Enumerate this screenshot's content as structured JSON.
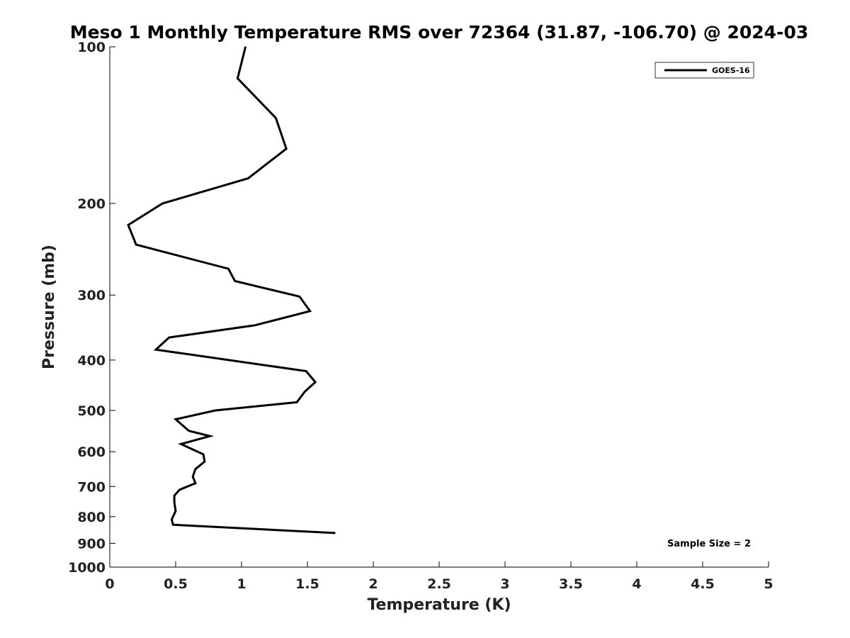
{
  "chart_data": {
    "type": "line",
    "title": "Meso 1 Monthly Temperature RMS over 72364 (31.87, -106.70) @ 2024-03",
    "xlabel": "Temperature (K)",
    "ylabel": "Pressure (mb)",
    "xlim": [
      0,
      5
    ],
    "ylim": [
      1000,
      100
    ],
    "y_scale": "log",
    "y_reversed": true,
    "grid": false,
    "x_ticks": [
      0,
      0.5,
      1,
      1.5,
      2,
      2.5,
      3,
      3.5,
      4,
      4.5,
      5
    ],
    "x_tick_labels": [
      "0",
      "0.5",
      "1",
      "1.5",
      "2",
      "2.5",
      "3",
      "3.5",
      "4",
      "4.5",
      "5"
    ],
    "y_ticks": [
      100,
      200,
      300,
      400,
      500,
      600,
      700,
      800,
      900,
      1000
    ],
    "y_tick_labels": [
      "100",
      "200",
      "300",
      "400",
      "500",
      "600",
      "700",
      "800",
      "900",
      "1000"
    ],
    "legend_position": "top-right",
    "series": [
      {
        "name": "GOES-16",
        "color": "#000000",
        "x": [
          1.03,
          0.97,
          1.26,
          1.34,
          1.05,
          0.4,
          0.14,
          0.2,
          0.9,
          0.95,
          1.44,
          1.52,
          1.1,
          0.45,
          0.35,
          1.49,
          1.56,
          1.48,
          1.42,
          0.8,
          0.5,
          0.6,
          0.76,
          0.54,
          0.71,
          0.72,
          0.65,
          0.63,
          0.65,
          0.53,
          0.49,
          0.49,
          0.5,
          0.47,
          0.48,
          1.71
        ],
        "y": [
          100,
          115,
          137,
          157,
          179,
          200,
          220,
          240,
          267,
          282,
          302,
          322,
          343,
          362,
          382,
          420,
          441,
          460,
          482,
          500,
          520,
          547,
          560,
          580,
          607,
          627,
          648,
          670,
          690,
          710,
          729,
          750,
          780,
          810,
          829,
          860
        ]
      }
    ],
    "annotations": [
      {
        "text": "Sample Size = 2",
        "position": "bottom-right"
      }
    ]
  }
}
